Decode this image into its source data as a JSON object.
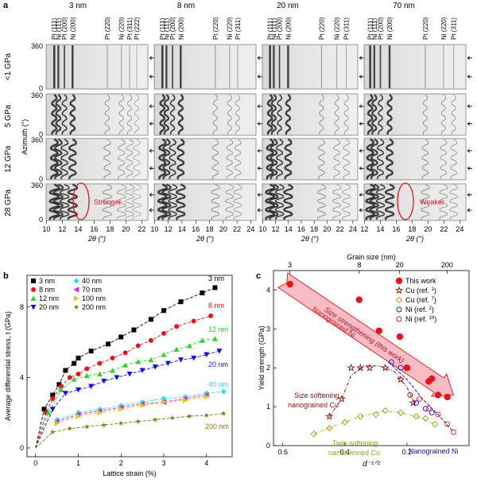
{
  "panel_a": {
    "letter": "a",
    "grain_sizes": [
      "3 nm",
      "8 nm",
      "20 nm",
      "70 nm"
    ],
    "pressures": [
      "<1 GPa",
      "5 GPa",
      "12 GPa",
      "28 GPa"
    ],
    "y_axis_label": "Azimuth (°)",
    "y_ticks": [
      "360",
      "0"
    ],
    "x_label": "2θ (°)",
    "peak_labels": [
      [
        "Pt (111)",
        "Ni (111)",
        "Pt (200)",
        "Ni (200)",
        "Pt (220)",
        "Ni (220)",
        "Pt (311)",
        "Pt (222)"
      ],
      [
        "Pt (111)",
        "Ni (111)",
        "Pt (200)",
        "Ni (200)",
        "Pt (220)",
        "Ni (220)",
        "Pt (311)"
      ],
      [
        "Pt (111)",
        "Ni (111)",
        "Pt (200)",
        "Ni (200)",
        "Pt (220)",
        "Ni (220)",
        "Pt (311)"
      ],
      [
        "Pt (111)",
        "Ni (111)",
        "Pt (200)",
        "Ni (200)",
        "Pt (220)",
        "Ni (220)",
        "Pt (311)"
      ]
    ],
    "x_tick_sets": [
      [
        "10",
        "12",
        "14",
        "16",
        "18",
        "20",
        "22"
      ],
      [
        "10",
        "12",
        "14",
        "16",
        "18",
        "20",
        "22",
        "24"
      ],
      [
        "10",
        "12",
        "14",
        "16",
        "18",
        "20",
        "22",
        "24"
      ],
      [
        "12",
        "14",
        "16",
        "18",
        "20",
        "22",
        "24"
      ]
    ],
    "annotation_stronger": "Stronger",
    "annotation_weaker": "Weaker"
  },
  "panel_b": {
    "letter": "b",
    "ylabel": "Average differential stress, t (GPa)",
    "xlabel": "Lattice strain (%)",
    "legend_col1": [
      "3 nm",
      "8 nm",
      "12 nm",
      "20 nm"
    ],
    "legend_col2": [
      "40 nm",
      "70 nm",
      "100 nm",
      "200 nm"
    ],
    "curve_labels": [
      "3 nm",
      "8 nm",
      "12 nm",
      "20 nm",
      "40 nm",
      "200 nm"
    ],
    "colors": {
      "3": "#000000",
      "8": "#e8141c",
      "12": "#33d133",
      "20": "#1010e0",
      "40": "#2fe0e0",
      "70": "#e020e0",
      "100": "#e0c81a",
      "200": "#7a7a10"
    }
  },
  "panel_c": {
    "letter": "c",
    "top_axis_label": "Grain size (nm)",
    "top_ticks": [
      "3",
      "8",
      "20",
      "200"
    ],
    "ylabel": "Yield strength (GPa)",
    "xlabel": "d⁻¹ᐟ²",
    "x_ticks": [
      "0.6",
      "0.4",
      "0.2"
    ],
    "y_ticks": [
      "0",
      "1",
      "2",
      "3",
      "4"
    ],
    "legend": [
      "This work",
      "Cu (ref. 1)",
      "Cu (ref. 7)",
      "Ni (ref. 2)",
      "Ni (ref. 19)"
    ],
    "arrow_text": "Size strengthening (this work)",
    "label_nanograined_ni": "Nanograined Ni",
    "label_size_softening_1": "Size softening",
    "label_size_softening_2": "nanograined Cu",
    "label_twin_1": "Twin softening",
    "label_twin_2": "nanotwinned Cu",
    "label_nanograined_ni_bottom": "Nanograined Ni"
  },
  "chart_data": [
    {
      "type": "scatter",
      "title": "",
      "xlabel": "Lattice strain (%)",
      "ylabel": "Average differential stress, t (GPa)",
      "xlim": [
        -0.2,
        4.6
      ],
      "ylim": [
        -0.5,
        9.8
      ],
      "x_ticks": [
        0,
        1,
        2,
        3,
        4
      ],
      "y_ticks": [
        0,
        4,
        8
      ],
      "series": [
        {
          "name": "3 nm",
          "values": [
            [
              0,
              0
            ],
            [
              0.2,
              2.2
            ],
            [
              0.4,
              3.0
            ],
            [
              0.55,
              3.6
            ],
            [
              0.7,
              4.4
            ],
            [
              0.9,
              4.8
            ],
            [
              1.0,
              5.1
            ],
            [
              1.3,
              5.5
            ],
            [
              1.7,
              5.9
            ],
            [
              2.0,
              6.3
            ],
            [
              2.3,
              6.7
            ],
            [
              2.7,
              7.3
            ],
            [
              3.0,
              7.8
            ],
            [
              3.4,
              8.3
            ],
            [
              3.9,
              8.8
            ],
            [
              4.2,
              9.1
            ]
          ]
        },
        {
          "name": "8 nm",
          "values": [
            [
              0,
              0
            ],
            [
              0.25,
              2.0
            ],
            [
              0.4,
              2.8
            ],
            [
              0.6,
              3.5
            ],
            [
              0.8,
              4.0
            ],
            [
              1.0,
              4.2
            ],
            [
              1.2,
              4.5
            ],
            [
              1.5,
              4.8
            ],
            [
              1.8,
              5.1
            ],
            [
              2.1,
              5.4
            ],
            [
              2.4,
              5.8
            ],
            [
              2.7,
              6.1
            ],
            [
              3.0,
              6.5
            ],
            [
              3.3,
              6.9
            ],
            [
              3.7,
              7.2
            ],
            [
              4.1,
              7.5
            ]
          ]
        },
        {
          "name": "12 nm",
          "values": [
            [
              0,
              0
            ],
            [
              0.3,
              2.0
            ],
            [
              0.6,
              3.3
            ],
            [
              0.9,
              3.9
            ],
            [
              1.2,
              4.1
            ],
            [
              1.5,
              4.2
            ],
            [
              1.8,
              4.4
            ],
            [
              2.1,
              4.7
            ],
            [
              2.4,
              4.9
            ],
            [
              2.7,
              5.0
            ],
            [
              3.0,
              5.3
            ],
            [
              3.3,
              5.6
            ],
            [
              3.6,
              5.8
            ],
            [
              3.9,
              6.1
            ],
            [
              4.2,
              6.2
            ]
          ]
        },
        {
          "name": "20 nm",
          "values": [
            [
              0,
              0
            ],
            [
              0.4,
              2.2
            ],
            [
              0.7,
              3.1
            ],
            [
              1.0,
              3.3
            ],
            [
              1.3,
              3.5
            ],
            [
              1.6,
              3.8
            ],
            [
              1.9,
              4.0
            ],
            [
              2.2,
              4.2
            ],
            [
              2.5,
              4.4
            ],
            [
              2.8,
              4.6
            ],
            [
              3.1,
              4.8
            ],
            [
              3.4,
              5.0
            ],
            [
              3.7,
              5.1
            ],
            [
              4.0,
              5.3
            ],
            [
              4.3,
              5.5
            ]
          ]
        },
        {
          "name": "40 nm",
          "values": [
            [
              0.5,
              1.6
            ],
            [
              1.0,
              2.0
            ],
            [
              1.5,
              2.2
            ],
            [
              2.0,
              2.4
            ],
            [
              2.5,
              2.6
            ],
            [
              3.0,
              2.8
            ],
            [
              3.5,
              2.9
            ],
            [
              4.0,
              3.1
            ],
            [
              4.4,
              3.2
            ]
          ]
        },
        {
          "name": "70 nm",
          "values": [
            [
              0.5,
              1.5
            ],
            [
              1.0,
              1.9
            ],
            [
              1.5,
              2.1
            ],
            [
              2.0,
              2.3
            ],
            [
              2.5,
              2.5
            ],
            [
              3.0,
              2.6
            ],
            [
              3.5,
              2.8
            ],
            [
              4.0,
              3.0
            ]
          ]
        },
        {
          "name": "100 nm",
          "values": [
            [
              0.5,
              1.4
            ],
            [
              1.0,
              1.8
            ],
            [
              1.5,
              2.0
            ],
            [
              2.0,
              2.2
            ],
            [
              2.5,
              2.4
            ],
            [
              3.0,
              2.6
            ],
            [
              3.5,
              2.7
            ],
            [
              4.0,
              2.9
            ]
          ]
        },
        {
          "name": "200 nm",
          "values": [
            [
              0,
              0
            ],
            [
              0.4,
              0.9
            ],
            [
              0.8,
              1.1
            ],
            [
              1.2,
              1.2
            ],
            [
              1.6,
              1.3
            ],
            [
              2.0,
              1.4
            ],
            [
              2.4,
              1.5
            ],
            [
              2.8,
              1.6
            ],
            [
              3.2,
              1.7
            ],
            [
              3.6,
              1.8
            ],
            [
              4.0,
              1.85
            ],
            [
              4.4,
              1.95
            ]
          ]
        }
      ]
    },
    {
      "type": "scatter",
      "title": "",
      "xlabel": "d⁻¹ᐟ²",
      "ylabel": "Yield strength (GPa)",
      "xlim": [
        0.63,
        0.0
      ],
      "ylim": [
        0,
        4.5
      ],
      "x_ticks": [
        0.6,
        0.4,
        0.2
      ],
      "y_ticks": [
        0,
        1,
        2,
        3,
        4
      ],
      "series": [
        {
          "name": "This work",
          "values": [
            [
              0.577,
              4.15
            ],
            [
              0.354,
              3.75
            ],
            [
              0.29,
              2.95
            ],
            [
              0.223,
              2.8
            ],
            [
              0.2,
              2.0
            ],
            [
              0.13,
              1.65
            ],
            [
              0.12,
              1.72
            ],
            [
              0.1,
              1.3
            ],
            [
              0.07,
              1.25
            ]
          ]
        },
        {
          "name": "Cu (ref. 1)",
          "values": [
            [
              0.45,
              0.75
            ],
            [
              0.41,
              1.2
            ],
            [
              0.38,
              2.0
            ],
            [
              0.35,
              2.0
            ],
            [
              0.32,
              2.0
            ],
            [
              0.27,
              2.0
            ],
            [
              0.22,
              1.7
            ],
            [
              0.18,
              1.1
            ]
          ]
        },
        {
          "name": "Cu (ref. 7)",
          "values": [
            [
              0.5,
              0.3
            ],
            [
              0.45,
              0.45
            ],
            [
              0.4,
              0.6
            ],
            [
              0.35,
              0.75
            ],
            [
              0.3,
              0.8
            ],
            [
              0.27,
              0.9
            ],
            [
              0.22,
              0.85
            ],
            [
              0.17,
              0.75
            ],
            [
              0.14,
              0.7
            ],
            [
              0.11,
              0.55
            ]
          ]
        },
        {
          "name": "Ni (ref. 2)",
          "values": [
            [
              0.25,
              2.15
            ],
            [
              0.22,
              2.0
            ],
            [
              0.19,
              1.3
            ],
            [
              0.17,
              1.1
            ],
            [
              0.14,
              0.95
            ],
            [
              0.12,
              0.85
            ]
          ]
        },
        {
          "name": "Ni (ref. 19)",
          "values": [
            [
              0.19,
              1.3
            ],
            [
              0.16,
              1.2
            ],
            [
              0.13,
              0.95
            ],
            [
              0.1,
              0.8
            ],
            [
              0.07,
              0.55
            ],
            [
              0.05,
              0.35
            ]
          ]
        }
      ]
    }
  ]
}
